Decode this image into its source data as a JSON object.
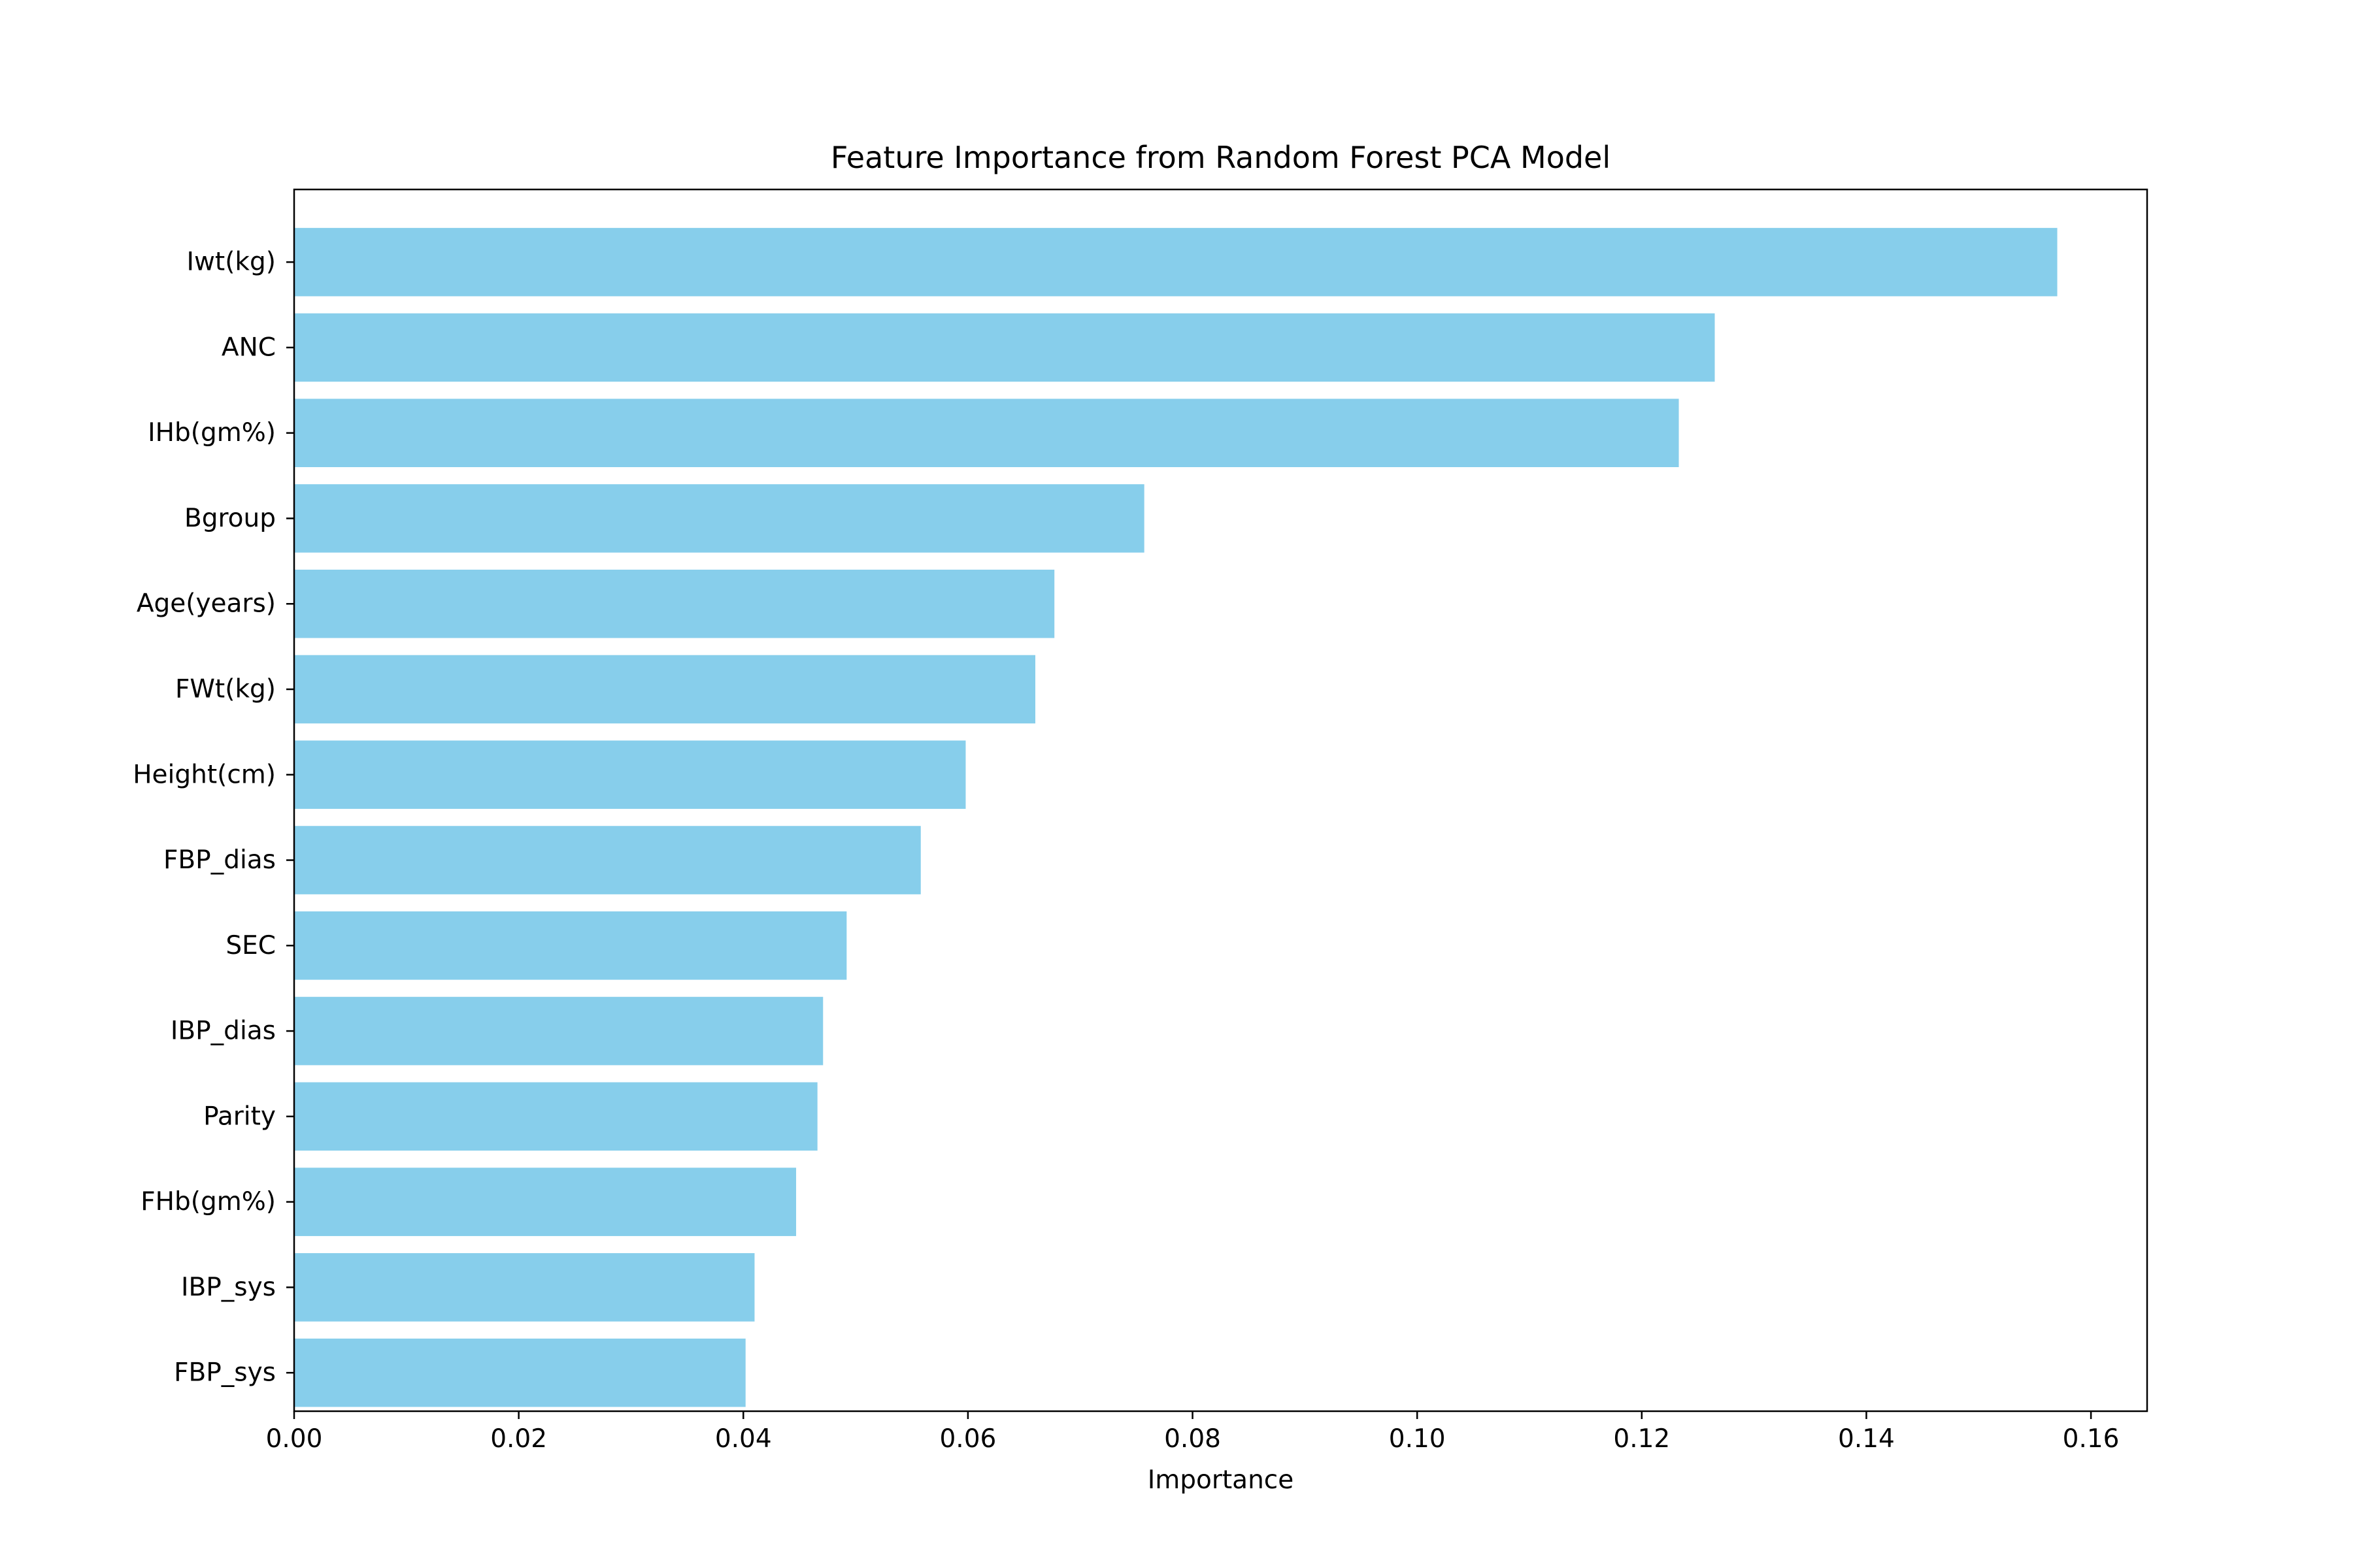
{
  "chart_data": {
    "type": "bar",
    "orientation": "horizontal",
    "title": "Feature Importance from Random Forest PCA Model",
    "xlabel": "Importance",
    "ylabel": "",
    "xlim": [
      0,
      0.165
    ],
    "x_ticks": [
      "0.00",
      "0.02",
      "0.04",
      "0.06",
      "0.08",
      "0.10",
      "0.12",
      "0.14",
      "0.16"
    ],
    "categories": [
      "Iwt(kg)",
      "ANC",
      "IHb(gm%)",
      "Bgroup",
      "Age(years)",
      "FWt(kg)",
      "Height(cm)",
      "FBP_dias",
      "SEC",
      "IBP_dias",
      "Parity",
      "FHb(gm%)",
      "IBP_sys",
      "FBP_sys"
    ],
    "values": [
      0.157,
      0.1265,
      0.1233,
      0.0757,
      0.0677,
      0.066,
      0.0598,
      0.0558,
      0.0492,
      0.0471,
      0.0466,
      0.0447,
      0.041,
      0.0402
    ],
    "bar_color": "#87ceeb",
    "grid": false,
    "legend": false
  }
}
